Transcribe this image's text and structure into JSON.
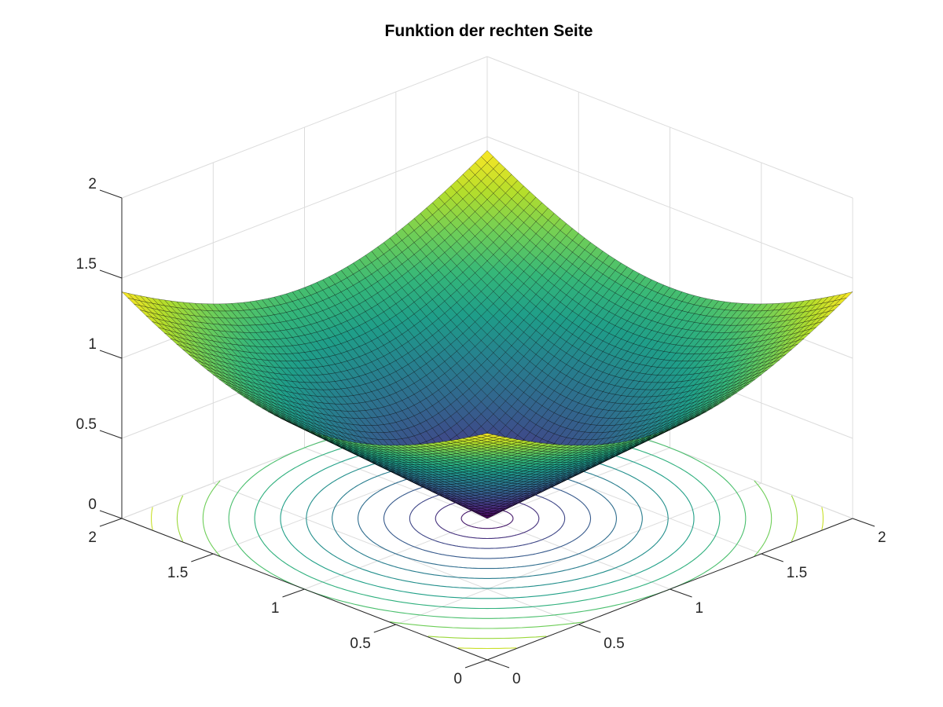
{
  "chart_data": {
    "type": "surface",
    "title": "Funktion der rechten Seite",
    "xlabel": "",
    "ylabel": "",
    "zlabel": "",
    "function": "z = sqrt((x-1)^2 + (y-1)^2)",
    "grid": true,
    "colormap": "viridis",
    "x": [
      0,
      2
    ],
    "y": [
      0,
      2
    ],
    "xlim": [
      0,
      2
    ],
    "ylim": [
      0,
      2
    ],
    "zlim": [
      0,
      2
    ],
    "mesh_n": 60,
    "surface_points": [
      {
        "x": 0,
        "y": 0,
        "z": 1.41
      },
      {
        "x": 2,
        "y": 0,
        "z": 1.41
      },
      {
        "x": 0,
        "y": 2,
        "z": 1.41
      },
      {
        "x": 2,
        "y": 2,
        "z": 1.41
      },
      {
        "x": 1,
        "y": 1,
        "z": 0
      }
    ],
    "contour_levels": [
      0.1,
      0.2,
      0.3,
      0.4,
      0.5,
      0.6,
      0.7,
      0.8,
      0.9,
      1.0,
      1.1,
      1.2,
      1.3
    ],
    "x_ticks": [
      "0",
      "0.5",
      "1",
      "1.5",
      "2"
    ],
    "y_ticks": [
      "0",
      "0.5",
      "1",
      "1.5",
      "2"
    ],
    "z_ticks": [
      "0",
      "0.5",
      "1",
      "1.5",
      "2"
    ],
    "colors": {
      "low": "#440154",
      "high": "#fde725",
      "edge": "#000000"
    }
  }
}
